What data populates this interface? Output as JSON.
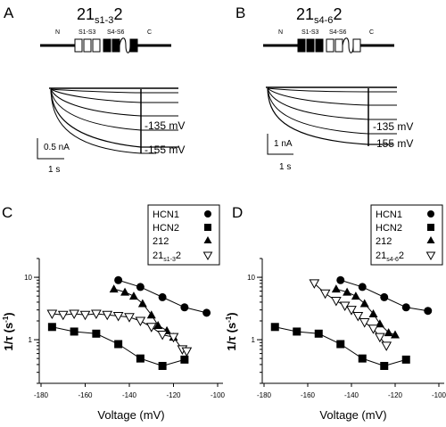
{
  "panels": [
    {
      "letter": "A",
      "title_base": "21",
      "title_sub": "s1-3",
      "title_end": "2",
      "dom": {
        "n": "N",
        "s13": "S1-S3",
        "s46": "S4-S6",
        "c": "C"
      },
      "labels": {
        "v1": "-135 mV",
        "v2": "-155 mV"
      },
      "scale": {
        "current": "0.5 nA",
        "time": "1 s"
      }
    },
    {
      "letter": "B",
      "title_base": "21",
      "title_sub": "s4-6",
      "title_end": "2",
      "dom": {
        "n": "N",
        "s13": "S1-S3",
        "s46": "S4-S6",
        "c": "C"
      },
      "labels": {
        "v1": "-135 mV",
        "v2": "-155 mV"
      },
      "scale": {
        "current": "1 nA",
        "time": "1 s"
      }
    }
  ],
  "plots": [
    {
      "letter": "C",
      "legend": {
        "hcn1": "HCN1",
        "hcn2": "HCN2",
        "c212": "212",
        "chim_base": "21",
        "chim_sub": "s1-3",
        "chim_end": "2"
      }
    },
    {
      "letter": "D",
      "legend": {
        "hcn1": "HCN1",
        "hcn2": "HCN2",
        "c212": "212",
        "chim_base": "21",
        "chim_sub": "s4-6",
        "chim_end": "2"
      }
    }
  ],
  "chart_data": [
    {
      "type": "scatter",
      "panel": "C",
      "title": "",
      "xlabel": "Voltage (mV)",
      "ylabel": "1/τ (s⁻¹)",
      "ylabel_base": "1/τ (s",
      "ylabel_exp": "-1",
      "ylabel_end": ")",
      "xlim": [
        -180,
        -100
      ],
      "ylim": [
        0.2,
        20
      ],
      "yscale": "log",
      "xticks": [
        -180,
        -160,
        -140,
        -120,
        -100
      ],
      "yticks": [
        1,
        10
      ],
      "series": [
        {
          "name": "HCN1",
          "marker": "circle",
          "x": [
            -145,
            -135,
            -125,
            -115,
            -105
          ],
          "y": [
            9.0,
            7.0,
            4.8,
            3.3,
            2.7
          ]
        },
        {
          "name": "HCN2",
          "marker": "square",
          "x": [
            -175,
            -165,
            -155,
            -145,
            -135,
            -125,
            -115
          ],
          "y": [
            1.6,
            1.35,
            1.25,
            0.85,
            0.5,
            0.38,
            0.48
          ]
        },
        {
          "name": "212",
          "marker": "triangle",
          "x": [
            -147,
            -142,
            -138,
            -134,
            -130,
            -127,
            -123,
            -120
          ],
          "y": [
            6.5,
            5.8,
            5.0,
            3.8,
            2.5,
            1.7,
            1.4,
            1.1
          ]
        },
        {
          "name": "21s1-32",
          "marker": "triangle-open",
          "x": [
            -175,
            -170,
            -165,
            -160,
            -155,
            -150,
            -145,
            -140,
            -135,
            -130,
            -125,
            -120,
            -116,
            -114
          ],
          "y": [
            2.6,
            2.5,
            2.6,
            2.5,
            2.6,
            2.5,
            2.4,
            2.3,
            2.0,
            1.6,
            1.2,
            1.1,
            0.7,
            0.65
          ]
        }
      ]
    },
    {
      "type": "scatter",
      "panel": "D",
      "title": "",
      "xlabel": "Voltage (mV)",
      "ylabel": "1/τ (s⁻¹)",
      "ylabel_base": "1/τ (s",
      "ylabel_exp": "-1",
      "ylabel_end": ")",
      "xlim": [
        -180,
        -100
      ],
      "ylim": [
        0.2,
        20
      ],
      "yscale": "log",
      "xticks": [
        -180,
        -160,
        -140,
        -120,
        -100
      ],
      "yticks": [
        1,
        10
      ],
      "series": [
        {
          "name": "HCN1",
          "marker": "circle",
          "x": [
            -145,
            -135,
            -125,
            -115,
            -105
          ],
          "y": [
            9.0,
            7.0,
            4.8,
            3.3,
            2.9
          ]
        },
        {
          "name": "HCN2",
          "marker": "square",
          "x": [
            -175,
            -165,
            -155,
            -145,
            -135,
            -125,
            -115
          ],
          "y": [
            1.6,
            1.35,
            1.25,
            0.85,
            0.5,
            0.38,
            0.48
          ]
        },
        {
          "name": "212",
          "marker": "triangle",
          "x": [
            -147,
            -142,
            -138,
            -134,
            -130,
            -127,
            -123,
            -120
          ],
          "y": [
            6.5,
            5.8,
            5.0,
            3.8,
            2.6,
            1.8,
            1.3,
            1.2
          ]
        },
        {
          "name": "21s4-62",
          "marker": "triangle-open",
          "x": [
            -157,
            -152,
            -147,
            -143,
            -140,
            -137,
            -134,
            -130,
            -127,
            -124
          ],
          "y": [
            8.0,
            5.5,
            4.2,
            3.5,
            3.0,
            2.4,
            1.9,
            1.5,
            1.1,
            0.8
          ]
        }
      ]
    }
  ]
}
